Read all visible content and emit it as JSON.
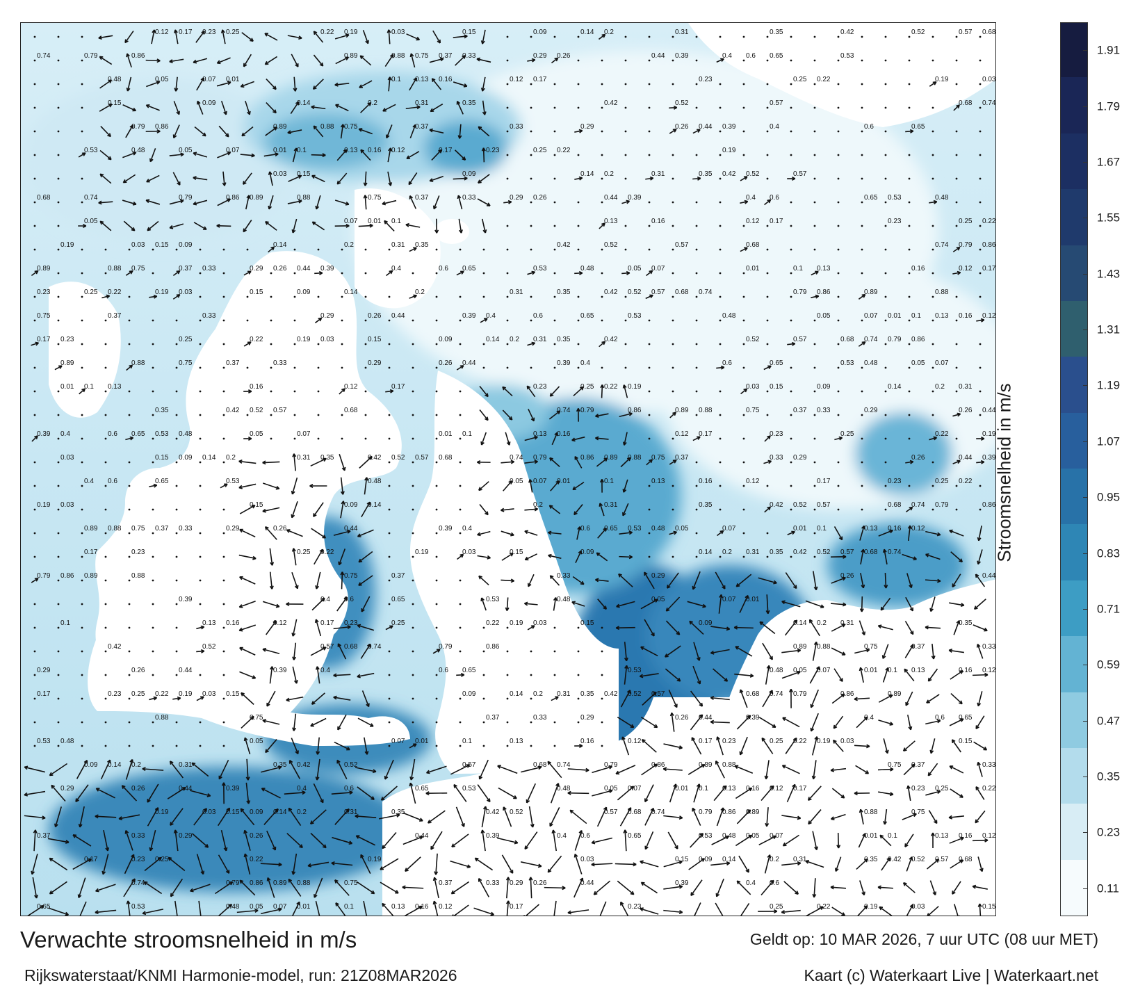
{
  "title": "Verwachte stroomsnelheid in m/s",
  "subtitle": "Rijkswaterstaat/KNMI Harmonie-model, run: 21Z08MAR2026",
  "validity": "Geldt op: 10 MAR 2026, 7 uur UTC (08 uur MET)",
  "credit": "Kaart (c) Waterkaart Live | Waterkaart.net",
  "colorbar": {
    "label": "Stroomsnelheid in m/s",
    "ticks": [
      "0.11",
      "0.23",
      "0.35",
      "0.47",
      "0.59",
      "0.71",
      "0.83",
      "0.95",
      "1.07",
      "1.19",
      "1.31",
      "1.43",
      "1.55",
      "1.67",
      "1.79",
      "1.91"
    ],
    "colors": [
      "#f6fbfd",
      "#d8edf5",
      "#b3dcec",
      "#8fcbe1",
      "#63b3d3",
      "#3d9dc4",
      "#2e86b5",
      "#2872a8",
      "#285f9d",
      "#2a4f8d",
      "#2f5f6e",
      "#264a73",
      "#1f3a6c",
      "#1c2f62",
      "#1a2656",
      "#161c40"
    ]
  },
  "map": {
    "water_color_light": "#e4f2f8",
    "water_color_mid": "#7fc3de",
    "water_color_dark": "#2a74ad",
    "land_color": "#ffffff",
    "sample_labels": [
      {
        "t": "0.12"
      },
      {
        "t": "0.17"
      },
      {
        "t": "0.23"
      },
      {
        "t": "0.25"
      },
      {
        "t": "0.22"
      },
      {
        "t": "0.19"
      },
      {
        "t": "0.03"
      },
      {
        "t": "0.15"
      },
      {
        "t": "0.09"
      },
      {
        "t": "0.14"
      },
      {
        "t": "0.2"
      },
      {
        "t": "0.31"
      },
      {
        "t": "0.35"
      },
      {
        "t": "0.42"
      },
      {
        "t": "0.52"
      },
      {
        "t": "0.57"
      },
      {
        "t": "0.68"
      },
      {
        "t": "0.74"
      },
      {
        "t": "0.79"
      },
      {
        "t": "0.86"
      },
      {
        "t": "0.89"
      },
      {
        "t": "0.88"
      },
      {
        "t": "0.75"
      },
      {
        "t": "0.37"
      },
      {
        "t": "0.33"
      },
      {
        "t": "0.29"
      },
      {
        "t": "0.26"
      },
      {
        "t": "0.44"
      },
      {
        "t": "0.39"
      },
      {
        "t": "0.4"
      },
      {
        "t": "0.6"
      },
      {
        "t": "0.65"
      },
      {
        "t": "0.53"
      },
      {
        "t": "0.48"
      },
      {
        "t": "0.05"
      },
      {
        "t": "0.07"
      },
      {
        "t": "0.01"
      },
      {
        "t": "0.1"
      },
      {
        "t": "0.13"
      },
      {
        "t": "0.16"
      }
    ]
  }
}
